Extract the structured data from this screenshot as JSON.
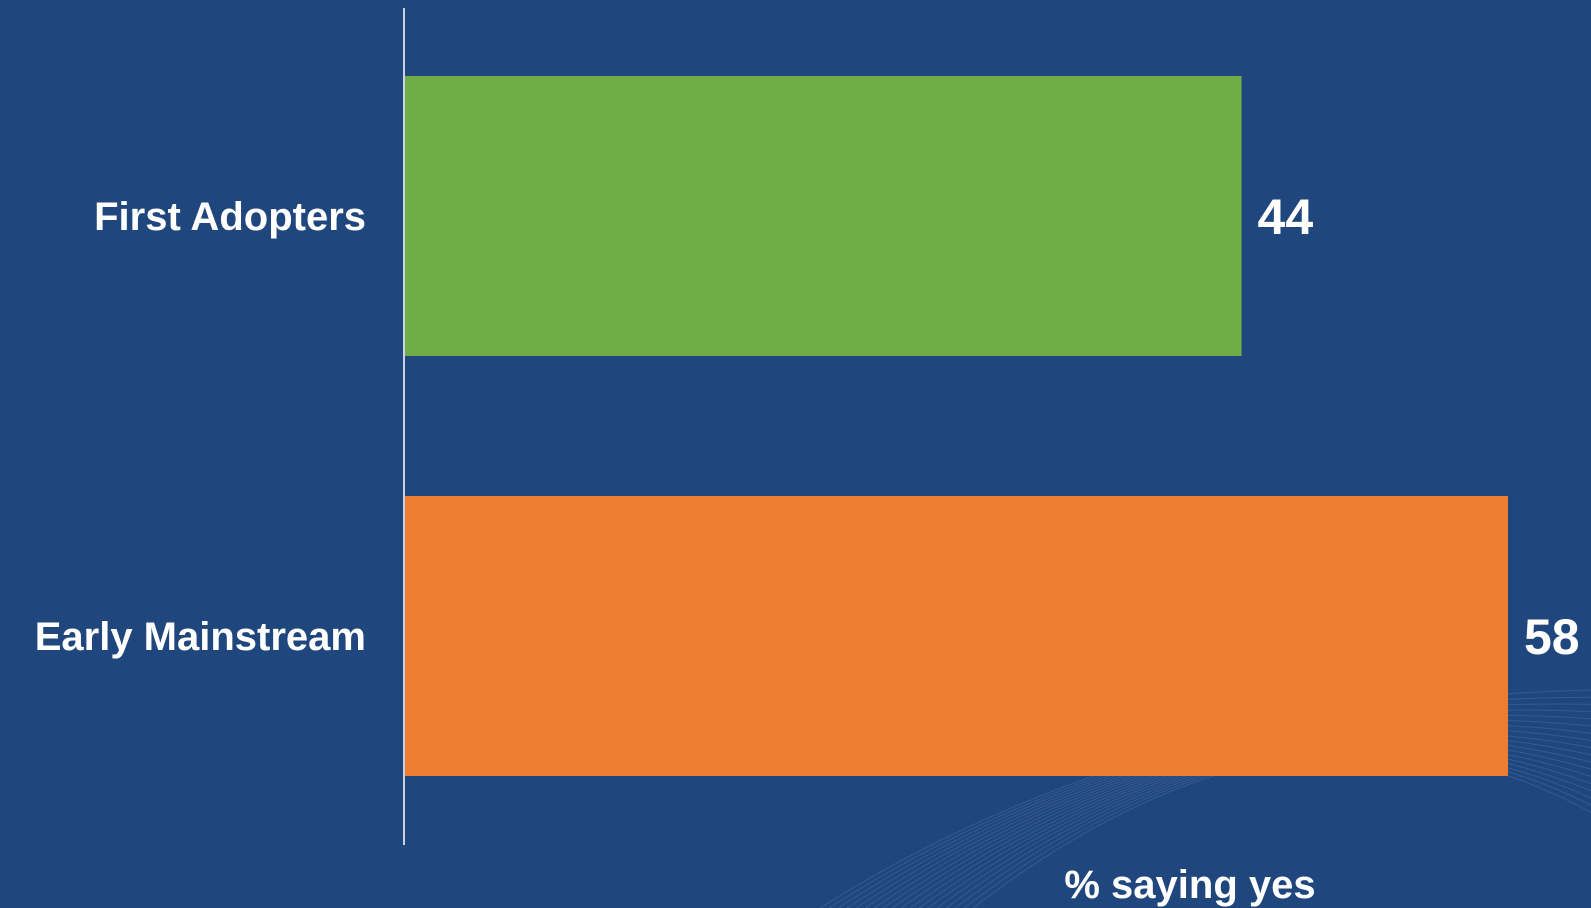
{
  "chart_data": {
    "type": "bar",
    "orientation": "horizontal",
    "categories": [
      "First Adopters",
      "Early Mainstream"
    ],
    "values": [
      44,
      58
    ],
    "value_labels": [
      "44",
      "58"
    ],
    "xlabel": "% saying yes",
    "ylabel": "",
    "title": "",
    "xlim": [
      0,
      58
    ],
    "grid": false,
    "legend": "none",
    "colors": [
      "#70ad47",
      "#ed7d31"
    ]
  },
  "colors": {
    "background": "#20477d",
    "axis_line": "#c9d3e3",
    "text": "#ffffff",
    "decoration": "#5c7fb3"
  }
}
